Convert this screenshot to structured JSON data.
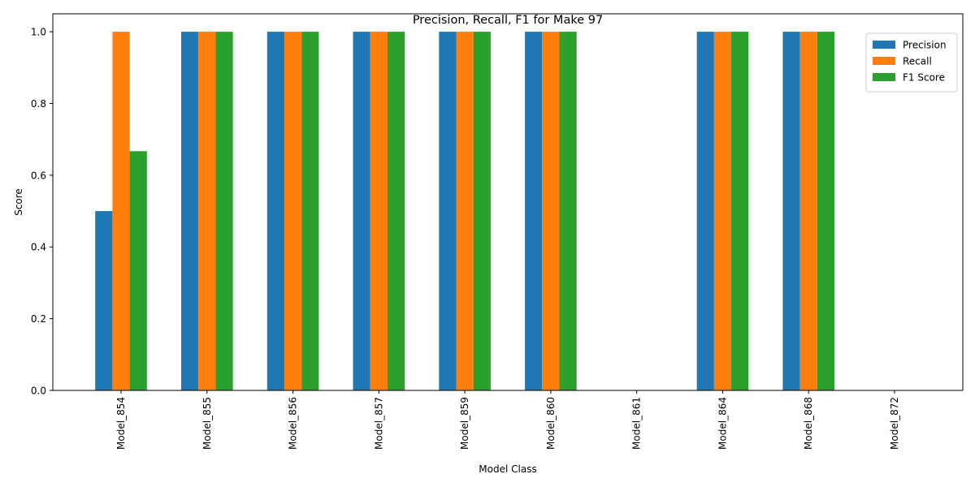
{
  "chart_data": {
    "type": "bar",
    "title": "Precision, Recall, F1 for Make 97",
    "xlabel": "Model Class",
    "ylabel": "Score",
    "ylim": [
      0,
      1.05
    ],
    "yticks": [
      0.0,
      0.2,
      0.4,
      0.6,
      0.8,
      1.0
    ],
    "grid": false,
    "legend_position": "top-right",
    "categories": [
      "Model_854",
      "Model_855",
      "Model_856",
      "Model_857",
      "Model_859",
      "Model_860",
      "Model_861",
      "Model_864",
      "Model_868",
      "Model_872"
    ],
    "series": [
      {
        "name": "Precision",
        "color": "#1f77b4",
        "values": [
          0.5,
          1.0,
          1.0,
          1.0,
          1.0,
          1.0,
          0.0,
          1.0,
          1.0,
          0.0
        ]
      },
      {
        "name": "Recall",
        "color": "#ff7f0e",
        "values": [
          1.0,
          1.0,
          1.0,
          1.0,
          1.0,
          1.0,
          0.0,
          1.0,
          1.0,
          0.0
        ]
      },
      {
        "name": "F1 Score",
        "color": "#2ca02c",
        "values": [
          0.667,
          1.0,
          1.0,
          1.0,
          1.0,
          1.0,
          0.0,
          1.0,
          1.0,
          0.0
        ]
      }
    ]
  }
}
